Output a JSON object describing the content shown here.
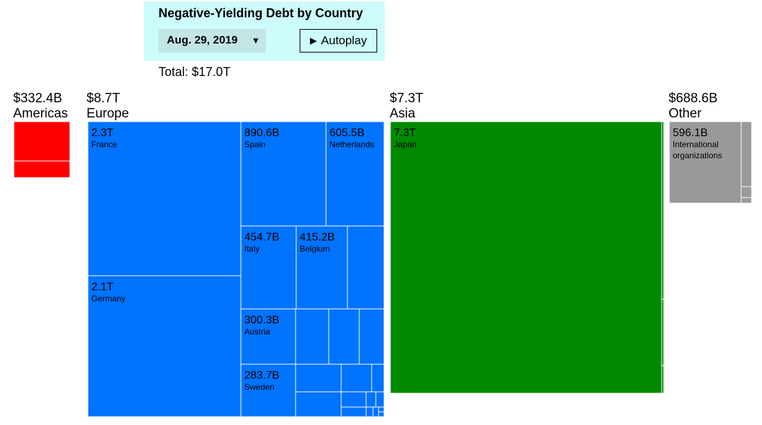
{
  "header": {
    "title": "Negative-Yielding Debt by Country",
    "date_value": "Aug. 29, 2019",
    "autoplay_label": "Autoplay",
    "total": "Total: $17.0T"
  },
  "colors": {
    "americas": "#ff0000",
    "europe": "#0073ff",
    "asia": "#008a00",
    "other": "#999999",
    "panel": "#ccfcfc"
  },
  "chart_data": {
    "type": "treemap",
    "title": "Negative-Yielding Debt by Country",
    "total": "$17.0T",
    "regions": [
      {
        "key": "americas",
        "name": "Americas",
        "value_label": "$332.4B",
        "countries": [
          {
            "value_label": "",
            "name": ""
          },
          {
            "value_label": "",
            "name": ""
          }
        ]
      },
      {
        "key": "europe",
        "name": "Europe",
        "value_label": "$8.7T",
        "countries": [
          {
            "value_label": "2.3T",
            "name": "France"
          },
          {
            "value_label": "2.1T",
            "name": "Germany"
          },
          {
            "value_label": "890.6B",
            "name": "Spain"
          },
          {
            "value_label": "605.5B",
            "name": "Netherlands"
          },
          {
            "value_label": "454.7B",
            "name": "Italy"
          },
          {
            "value_label": "415.2B",
            "name": "Belgium"
          },
          {
            "value_label": "",
            "name": ""
          },
          {
            "value_label": "300.3B",
            "name": "Austria"
          },
          {
            "value_label": "",
            "name": ""
          },
          {
            "value_label": "",
            "name": ""
          },
          {
            "value_label": "",
            "name": ""
          },
          {
            "value_label": "283.7B",
            "name": "Sweden"
          },
          {
            "value_label": "",
            "name": ""
          },
          {
            "value_label": "",
            "name": ""
          },
          {
            "value_label": "",
            "name": ""
          },
          {
            "value_label": "",
            "name": ""
          },
          {
            "value_label": "",
            "name": ""
          },
          {
            "value_label": "",
            "name": ""
          },
          {
            "value_label": "",
            "name": ""
          },
          {
            "value_label": "",
            "name": ""
          },
          {
            "value_label": "",
            "name": ""
          },
          {
            "value_label": "",
            "name": ""
          },
          {
            "value_label": "",
            "name": ""
          },
          {
            "value_label": "",
            "name": ""
          }
        ]
      },
      {
        "key": "asia",
        "name": "Asia",
        "value_label": "$7.3T",
        "countries": [
          {
            "value_label": "7.3T",
            "name": "Japan"
          },
          {
            "value_label": "",
            "name": ""
          },
          {
            "value_label": "",
            "name": ""
          },
          {
            "value_label": "",
            "name": ""
          }
        ]
      },
      {
        "key": "other",
        "name": "Other",
        "value_label": "$688.6B",
        "countries": [
          {
            "value_label": "596.1B",
            "name": "International organizations"
          },
          {
            "value_label": "",
            "name": ""
          },
          {
            "value_label": "",
            "name": ""
          },
          {
            "value_label": "",
            "name": ""
          }
        ]
      }
    ]
  }
}
